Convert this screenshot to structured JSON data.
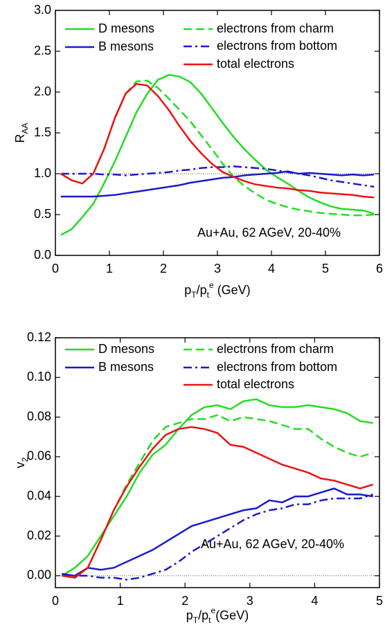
{
  "chart_data": [
    {
      "type": "line",
      "ylabel": [
        {
          "text": "R"
        },
        {
          "text": "AA",
          "style": "sub"
        }
      ],
      "xlabel": [
        {
          "text": "p"
        },
        {
          "text": "T",
          "style": "sub"
        },
        {
          "text": "/p"
        },
        {
          "text": "t",
          "style": "sub"
        },
        {
          "text": "e",
          "style": "sup"
        },
        {
          "text": " (GeV)"
        }
      ],
      "annotation": "Au+Au, 62 AGeV, 20-40%",
      "reference_line": 1,
      "xlim": [
        0,
        6
      ],
      "xticks": [
        0,
        1,
        2,
        3,
        4,
        5,
        6
      ],
      "ylim": [
        0,
        3
      ],
      "yticks": [
        {
          "value": 0,
          "label": "0.0"
        },
        0.5,
        {
          "value": 1,
          "label": "1.0"
        },
        1.5,
        {
          "value": 2,
          "label": "2.0"
        },
        2.5,
        {
          "value": 3,
          "label": "3.0"
        }
      ],
      "x": [
        0.1,
        0.3,
        0.5,
        0.7,
        0.9,
        1.1,
        1.3,
        1.5,
        1.7,
        1.9,
        2.1,
        2.3,
        2.5,
        2.7,
        2.9,
        3.1,
        3.3,
        3.5,
        3.7,
        3.9,
        4.1,
        4.3,
        4.5,
        4.7,
        4.9,
        5.1,
        5.3,
        5.5,
        5.7,
        5.9
      ],
      "series": [
        {
          "name": "D mesons",
          "color": "#22dd22",
          "dash": "solid",
          "values": [
            0.25,
            0.32,
            0.47,
            0.63,
            0.88,
            1.15,
            1.45,
            1.75,
            1.98,
            2.15,
            2.21,
            2.19,
            2.12,
            1.98,
            1.8,
            1.62,
            1.45,
            1.3,
            1.17,
            1.05,
            0.96,
            0.88,
            0.79,
            0.71,
            0.65,
            0.6,
            0.57,
            0.56,
            0.55,
            0.51
          ]
        },
        {
          "name": "electrons from charm",
          "color": "#22dd22",
          "dash": "dash",
          "values": [
            1.0,
            0.92,
            0.88,
            1.0,
            1.3,
            1.68,
            1.98,
            2.13,
            2.14,
            2.05,
            1.92,
            1.78,
            1.64,
            1.47,
            1.3,
            1.12,
            0.96,
            0.85,
            0.76,
            0.68,
            0.63,
            0.59,
            0.56,
            0.54,
            0.52,
            0.51,
            0.5,
            0.49,
            0.49,
            0.5
          ]
        },
        {
          "name": "B mesons",
          "color": "#1a1acc",
          "dash": "solid",
          "values": [
            0.72,
            0.72,
            0.72,
            0.72,
            0.73,
            0.74,
            0.76,
            0.78,
            0.8,
            0.82,
            0.84,
            0.86,
            0.89,
            0.91,
            0.93,
            0.95,
            0.96,
            0.98,
            0.99,
            1.0,
            1.01,
            1.03,
            1.0,
            1.01,
            1.0,
            0.99,
            0.98,
            0.99,
            0.98,
            0.99
          ]
        },
        {
          "name": "electrons from bottom",
          "color": "#1a1acc",
          "dash": "dashdot",
          "values": [
            1.0,
            1.0,
            1.0,
            1.0,
            0.99,
            0.99,
            0.98,
            0.99,
            1.0,
            1.01,
            1.02,
            1.04,
            1.05,
            1.07,
            1.08,
            1.08,
            1.09,
            1.08,
            1.07,
            1.06,
            1.04,
            1.02,
            1.0,
            0.98,
            0.95,
            0.92,
            0.9,
            0.88,
            0.86,
            0.84
          ]
        },
        {
          "name": "total electrons",
          "color": "#ee1111",
          "dash": "solid",
          "values": [
            1.0,
            0.92,
            0.88,
            1.0,
            1.3,
            1.68,
            1.98,
            2.1,
            2.08,
            1.95,
            1.78,
            1.58,
            1.4,
            1.25,
            1.12,
            1.02,
            0.96,
            0.91,
            0.87,
            0.85,
            0.83,
            0.82,
            0.8,
            0.79,
            0.77,
            0.76,
            0.75,
            0.74,
            0.72,
            0.71
          ]
        }
      ]
    },
    {
      "type": "line",
      "ylabel": [
        {
          "text": "v"
        },
        {
          "text": "2",
          "style": "sub"
        }
      ],
      "xlabel": [
        {
          "text": "p"
        },
        {
          "text": "T",
          "style": "sub"
        },
        {
          "text": "/p"
        },
        {
          "text": "t",
          "style": "sub"
        },
        {
          "text": "e",
          "style": "sup"
        },
        {
          "text": "(GeV)"
        }
      ],
      "annotation": "Au+Au, 62 AGeV, 20-40%",
      "reference_line": 0,
      "xlim": [
        0,
        5
      ],
      "xticks": [
        0,
        1,
        2,
        3,
        4,
        5
      ],
      "ylim": [
        -0.006,
        0.12
      ],
      "yticks": [
        {
          "value": 0,
          "label": "0.00"
        },
        0.02,
        0.04,
        0.06,
        0.08,
        {
          "value": 0.1,
          "label": "0.10"
        },
        0.12
      ],
      "x": [
        0.1,
        0.3,
        0.5,
        0.7,
        0.9,
        1.1,
        1.3,
        1.5,
        1.7,
        1.9,
        2.1,
        2.3,
        2.5,
        2.7,
        2.9,
        3.1,
        3.3,
        3.5,
        3.7,
        3.9,
        4.1,
        4.3,
        4.5,
        4.7,
        4.9
      ],
      "series": [
        {
          "name": "D mesons",
          "color": "#22dd22",
          "dash": "solid",
          "values": [
            0.0,
            0.004,
            0.01,
            0.02,
            0.03,
            0.04,
            0.052,
            0.061,
            0.066,
            0.074,
            0.081,
            0.085,
            0.086,
            0.084,
            0.088,
            0.089,
            0.086,
            0.085,
            0.085,
            0.086,
            0.085,
            0.084,
            0.082,
            0.078,
            0.077
          ]
        },
        {
          "name": "electrons from charm",
          "color": "#22dd22",
          "dash": "dash",
          "values": [
            0.0,
            -0.001,
            0.004,
            0.018,
            0.033,
            0.046,
            0.057,
            0.068,
            0.075,
            0.077,
            0.079,
            0.079,
            0.081,
            0.078,
            0.08,
            0.079,
            0.078,
            0.076,
            0.074,
            0.074,
            0.069,
            0.065,
            0.062,
            0.06,
            0.062
          ]
        },
        {
          "name": "B mesons",
          "color": "#1a1acc",
          "dash": "solid",
          "values": [
            0.001,
            0.0,
            0.004,
            0.003,
            0.004,
            0.007,
            0.01,
            0.013,
            0.017,
            0.021,
            0.025,
            0.027,
            0.029,
            0.031,
            0.033,
            0.034,
            0.038,
            0.037,
            0.04,
            0.04,
            0.042,
            0.044,
            0.041,
            0.041,
            0.04
          ]
        },
        {
          "name": "electrons from bottom",
          "color": "#1a1acc",
          "dash": "dashdot",
          "values": [
            0.0,
            0.0,
            0.0,
            -0.001,
            -0.001,
            -0.002,
            -0.001,
            0.001,
            0.003,
            0.007,
            0.012,
            0.016,
            0.02,
            0.024,
            0.028,
            0.031,
            0.033,
            0.034,
            0.036,
            0.036,
            0.038,
            0.039,
            0.039,
            0.039,
            0.041
          ]
        },
        {
          "name": "total electrons",
          "color": "#ee1111",
          "dash": "solid",
          "values": [
            0.0,
            -0.001,
            0.004,
            0.018,
            0.033,
            0.045,
            0.055,
            0.064,
            0.071,
            0.074,
            0.075,
            0.074,
            0.072,
            0.066,
            0.065,
            0.062,
            0.059,
            0.056,
            0.054,
            0.052,
            0.049,
            0.048,
            0.046,
            0.044,
            0.046
          ]
        }
      ]
    }
  ]
}
